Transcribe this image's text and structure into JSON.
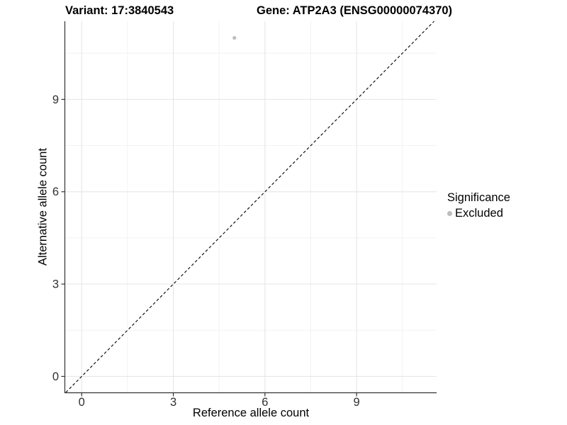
{
  "titles": {
    "variant": "Variant: 17:3840543",
    "gene": "Gene: ATP2A3 (ENSG00000074370)"
  },
  "chart_data": {
    "type": "scatter",
    "title_left": "Variant: 17:3840543",
    "title_right": "Gene: ATP2A3 (ENSG00000074370)",
    "xlabel": "Reference allele count",
    "ylabel": "Alternative allele count",
    "xlim": [
      -0.54,
      11.62
    ],
    "ylim": [
      -0.52,
      11.54
    ],
    "x_ticks": [
      0,
      3,
      6,
      9
    ],
    "y_ticks": [
      0,
      3,
      6,
      9
    ],
    "x_minor_ticks": [
      1.5,
      4.5,
      7.5,
      10.5
    ],
    "y_minor_ticks": [
      1.5,
      4.5,
      7.5,
      10.5
    ],
    "grid": true,
    "reference_line": {
      "type": "identity",
      "slope": 1,
      "intercept": 0,
      "style": "dashed",
      "color": "#000000"
    },
    "series": [
      {
        "name": "Excluded",
        "color": "#bdbdbd",
        "points": [
          {
            "x": 5,
            "y": 11
          }
        ]
      }
    ],
    "legend": {
      "title": "Significance",
      "position": "right",
      "items": [
        {
          "label": "Excluded",
          "color": "#bdbdbd"
        }
      ]
    }
  },
  "colors": {
    "background": "#ffffff",
    "grid_major": "#e4e4e4",
    "grid_minor": "#f2f2f2",
    "axis_line": "#333333",
    "tick_label": "#303030",
    "point": "#bdbdbd",
    "reference_line": "#000000"
  }
}
